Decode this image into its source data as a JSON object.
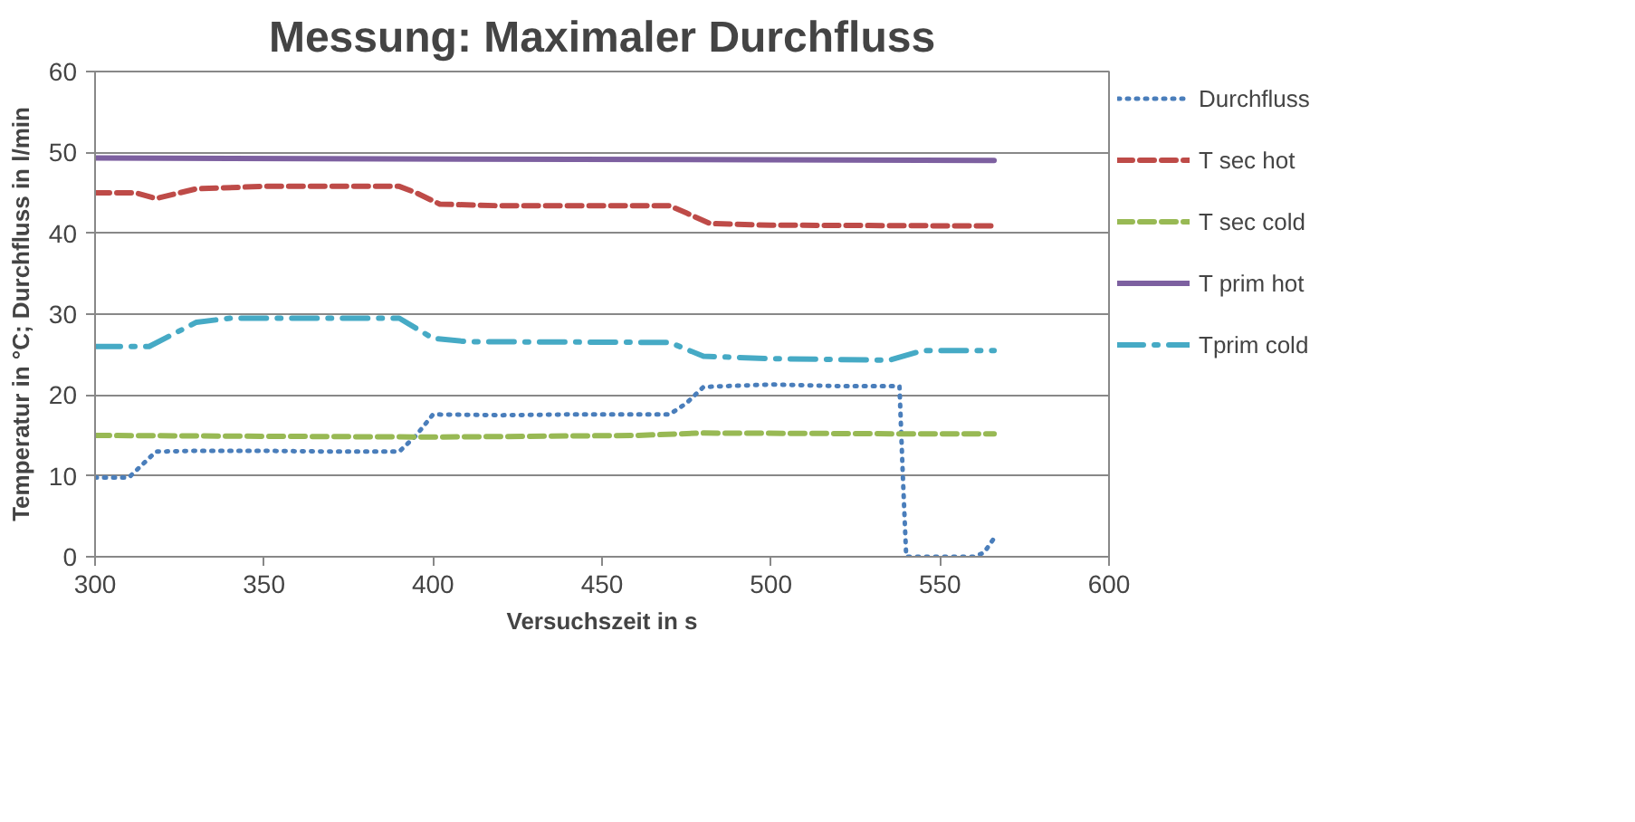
{
  "chart_data": {
    "type": "line",
    "title": "Messung: Maximaler Durchfluss",
    "xlabel": "Versuchszeit in s",
    "ylabel": "Temperatur in °C; Durchfluss in l/min",
    "xlim": [
      300,
      600
    ],
    "xticks": [
      300,
      350,
      400,
      450,
      500,
      550,
      600
    ],
    "ylim": [
      0,
      60
    ],
    "yticks": [
      0,
      10,
      20,
      30,
      40,
      50,
      60
    ],
    "grid": "y",
    "legend": "right",
    "marker": "none",
    "series": [
      {
        "name": "Durchfluss",
        "color": "#4a7ebb",
        "line_style": "dotted",
        "x": [
          300,
          310,
          313,
          318,
          330,
          350,
          370,
          390,
          395,
          400,
          420,
          440,
          470,
          475,
          480,
          500,
          520,
          538,
          539,
          540,
          550,
          560,
          563,
          566
        ],
        "values": [
          9.8,
          9.8,
          11,
          13,
          13.1,
          13.1,
          13,
          13,
          15,
          17.6,
          17.5,
          17.6,
          17.6,
          19,
          21,
          21.3,
          21.1,
          21.1,
          10,
          0,
          0,
          0,
          0.5,
          2.3
        ]
      },
      {
        "name": "T sec hot",
        "color": "#be4b48",
        "line_style": "dashed",
        "x": [
          300,
          312,
          318,
          330,
          350,
          390,
          395,
          402,
          420,
          470,
          475,
          482,
          500,
          566
        ],
        "values": [
          45,
          45,
          44.3,
          45.5,
          45.8,
          45.8,
          45,
          43.6,
          43.4,
          43.4,
          42.5,
          41.2,
          41,
          40.9
        ]
      },
      {
        "name": "T sec cold",
        "color": "#98b954",
        "line_style": "dashed",
        "x": [
          300,
          400,
          460,
          480,
          540,
          566
        ],
        "values": [
          15,
          14.8,
          15,
          15.3,
          15.2,
          15.2
        ]
      },
      {
        "name": "T prim hot",
        "color": "#7d60a0",
        "line_style": "solid",
        "x": [
          300,
          566
        ],
        "values": [
          49.3,
          49
        ]
      },
      {
        "name": "Tprim cold",
        "color": "#46aac5",
        "line_style": "dashdot",
        "x": [
          300,
          316,
          330,
          340,
          390,
          400,
          410,
          470,
          480,
          500,
          535,
          545,
          566
        ],
        "values": [
          26,
          26,
          29,
          29.5,
          29.5,
          27,
          26.6,
          26.5,
          24.8,
          24.5,
          24.3,
          25.5,
          25.5
        ]
      }
    ]
  }
}
